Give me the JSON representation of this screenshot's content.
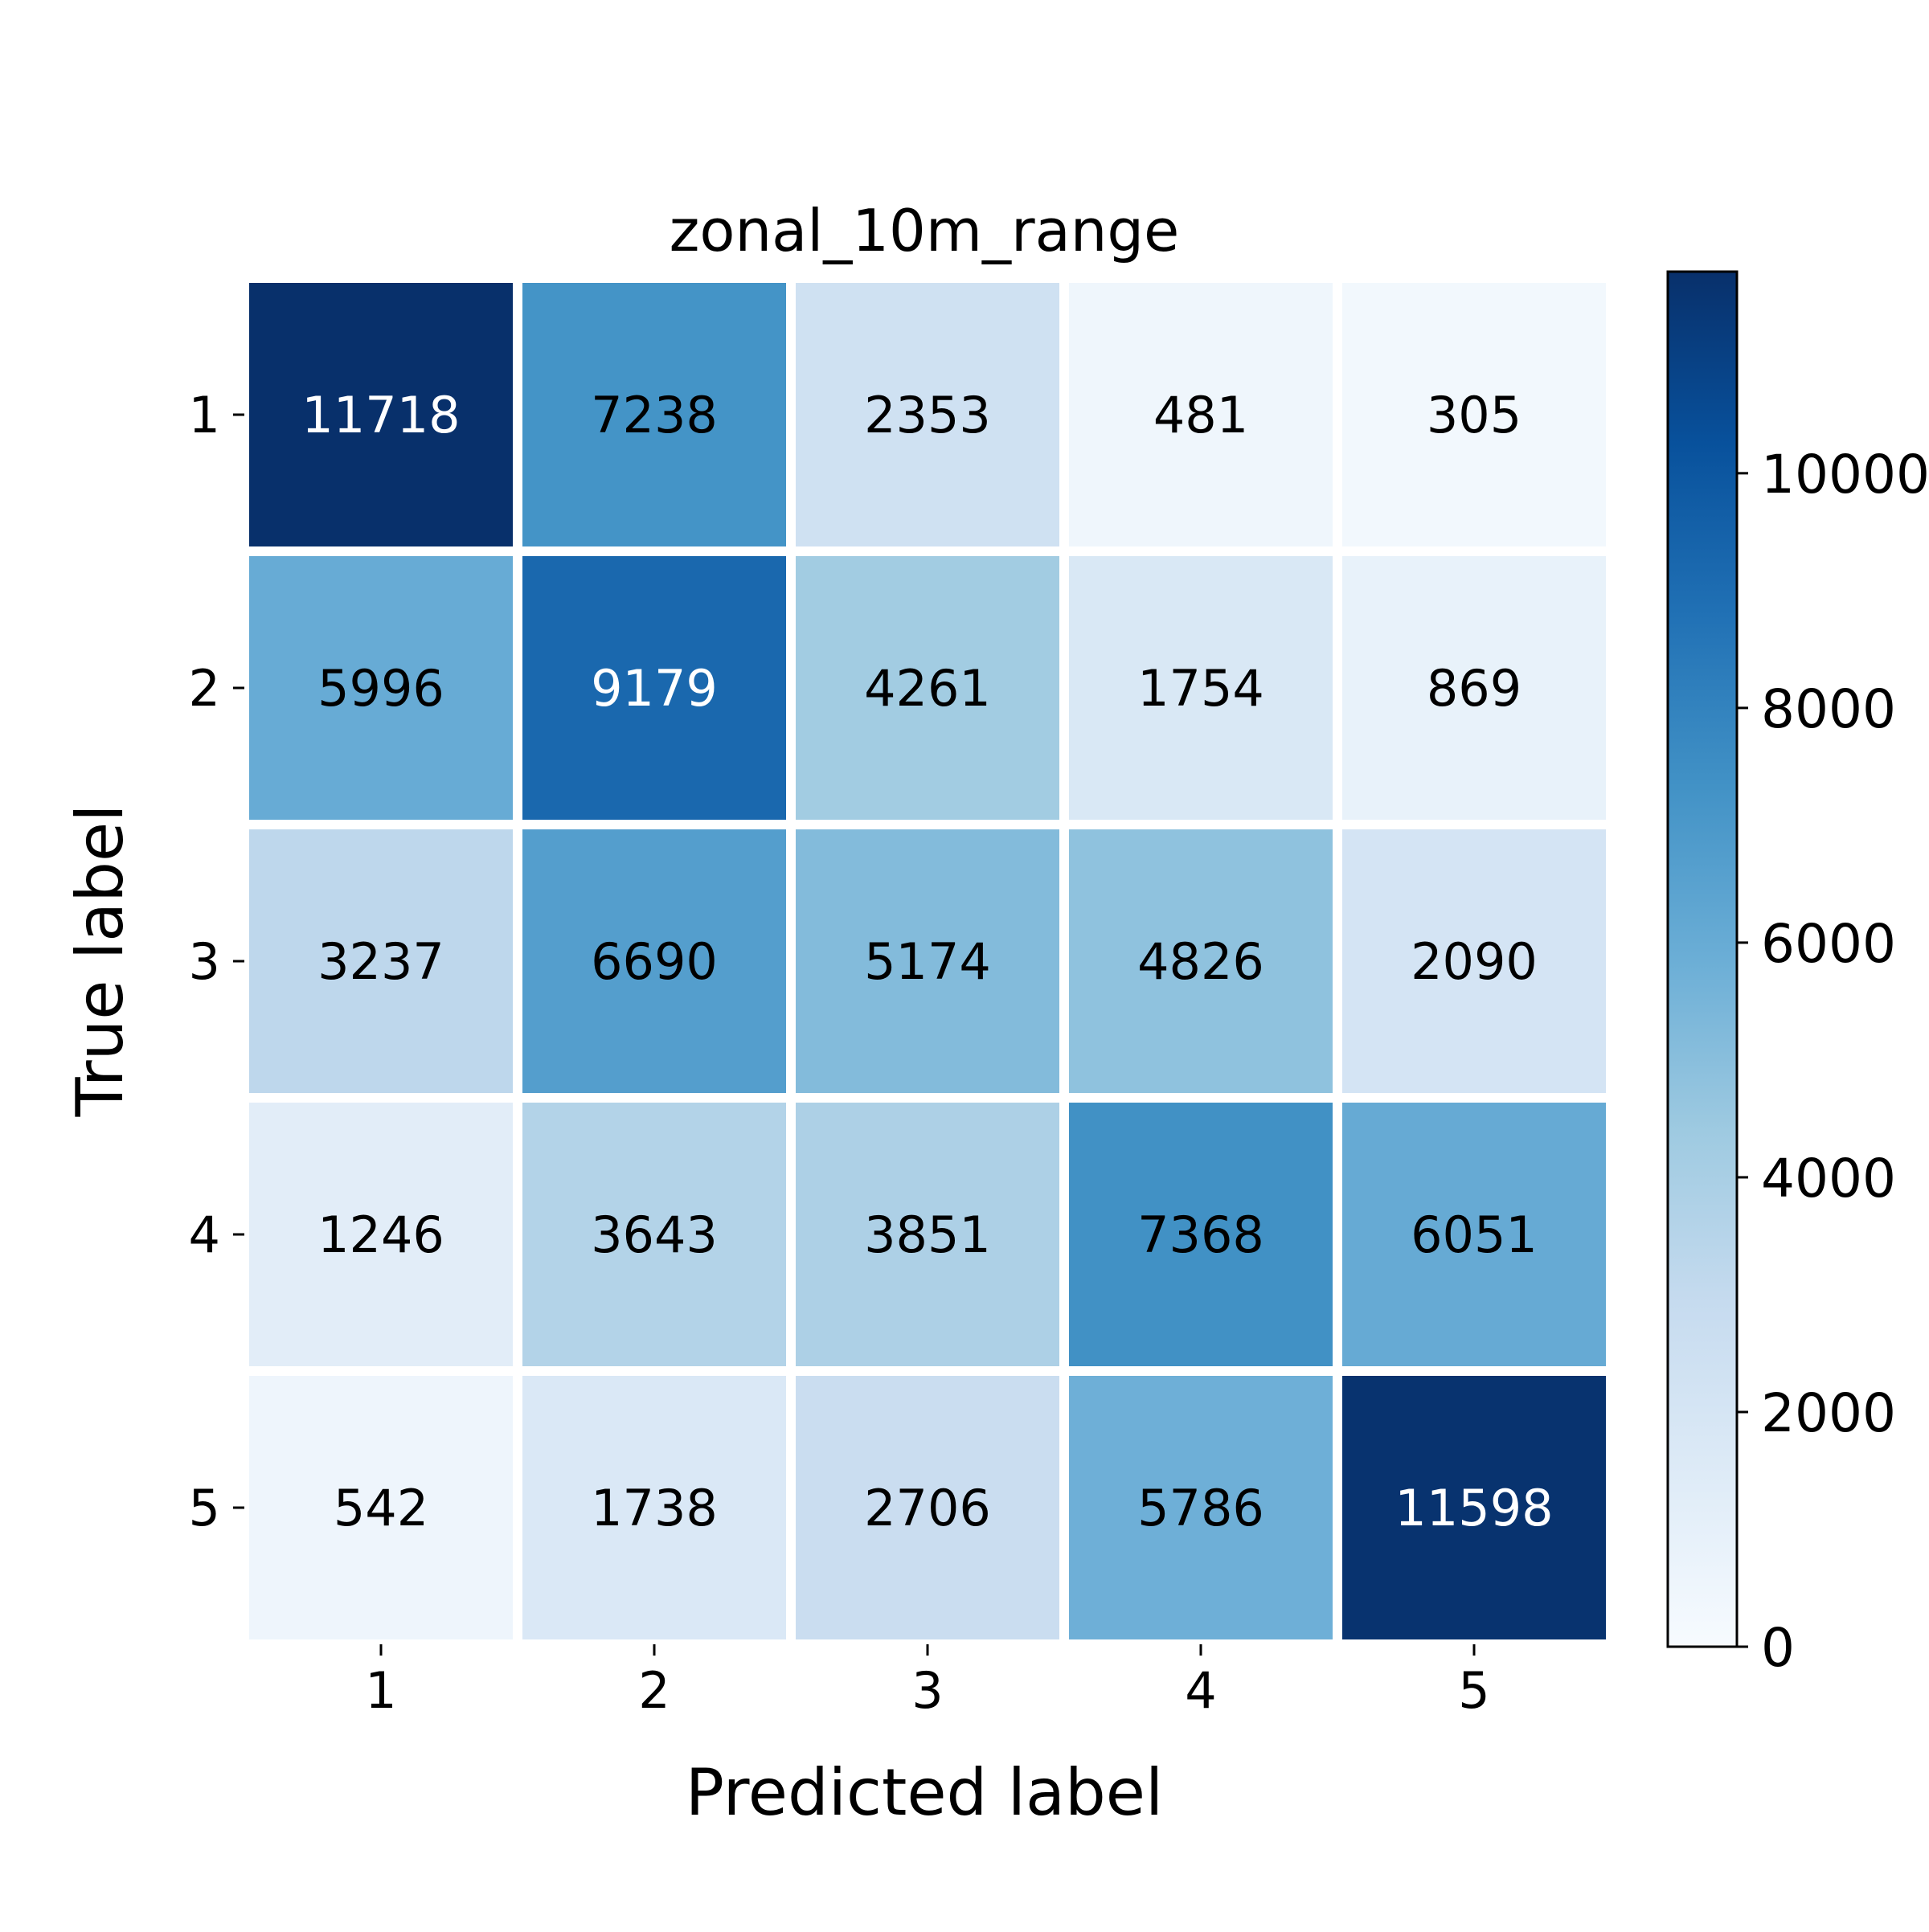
{
  "chart_data": {
    "type": "heatmap",
    "title": "zonal_10m_range",
    "xlabel": "Predicted label",
    "ylabel": "True label",
    "x_categories": [
      "1",
      "2",
      "3",
      "4",
      "5"
    ],
    "y_categories": [
      "1",
      "2",
      "3",
      "4",
      "5"
    ],
    "values": [
      [
        11718,
        7238,
        2353,
        481,
        305
      ],
      [
        5996,
        9179,
        4261,
        1754,
        869
      ],
      [
        3237,
        6690,
        5174,
        4826,
        2090
      ],
      [
        1246,
        3643,
        3851,
        7368,
        6051
      ],
      [
        542,
        1738,
        2706,
        5786,
        11598
      ]
    ],
    "colormap": "Blues",
    "color_range": [
      0,
      11718
    ],
    "colorbar_ticks": [
      0,
      2000,
      4000,
      6000,
      8000,
      10000
    ],
    "colorbar_tick_labels": [
      "0",
      "2000",
      "4000",
      "6000",
      "8000",
      "10000"
    ],
    "cell_text_dark_color": "#000000",
    "cell_text_light_color": "#ffffff",
    "grid_line_color": "#ffffff"
  }
}
